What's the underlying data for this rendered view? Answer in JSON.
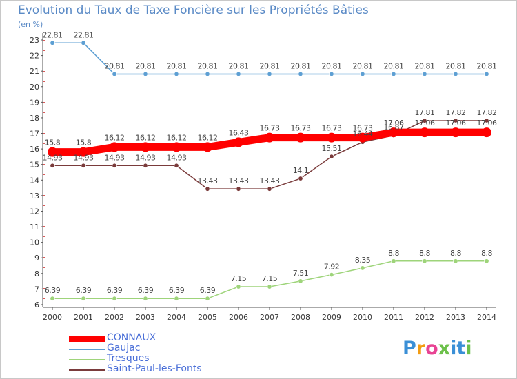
{
  "header": {
    "title": "Evolution du Taux de Taxe Foncière sur les Propriétés Bâties",
    "unit": "(en %)"
  },
  "logo": {
    "text": "Proxiti",
    "colors": [
      "#3a8fd6",
      "#f39c12",
      "#e84393",
      "#6cc04a",
      "#3a8fd6"
    ]
  },
  "chart_data": {
    "type": "line",
    "title": "Evolution du Taux de Taxe Foncière sur les Propriétés Bâties",
    "ylabel": "(en %)",
    "xlabel": "",
    "x": [
      "2000",
      "2001",
      "2002",
      "2003",
      "2004",
      "2005",
      "2006",
      "2007",
      "2008",
      "2009",
      "2010",
      "2011",
      "2012",
      "2013",
      "2014"
    ],
    "ylim": [
      6,
      23
    ],
    "yticks": [
      "6",
      "7",
      "8",
      "9",
      "10",
      "11",
      "12",
      "13",
      "14",
      "15",
      "16",
      "17",
      "18",
      "19",
      "20",
      "21",
      "22",
      "23"
    ],
    "grid": false,
    "legend_position": "bottom-left",
    "series": [
      {
        "name": "CONNAUX",
        "color": "#ff0000",
        "values": [
          15.8,
          15.8,
          16.12,
          16.12,
          16.12,
          16.12,
          16.43,
          16.73,
          16.73,
          16.73,
          16.73,
          17.06,
          17.06,
          17.06,
          17.06
        ],
        "labels": [
          "15.8",
          "15.8",
          "16.12",
          "16.12",
          "16.12",
          "16.12",
          "16.43",
          "16.73",
          "16.73",
          "16.73",
          "16.73",
          "17.06",
          "17.06",
          "17.06",
          "17.06"
        ]
      },
      {
        "name": "Gaujac",
        "color": "#5d9fd3",
        "values": [
          22.81,
          22.81,
          20.81,
          20.81,
          20.81,
          20.81,
          20.81,
          20.81,
          20.81,
          20.81,
          20.81,
          20.81,
          20.81,
          20.81,
          20.81
        ],
        "labels": [
          "22.81",
          "22.81",
          "20.81",
          "20.81",
          "20.81",
          "20.81",
          "20.81",
          "20.81",
          "20.81",
          "20.81",
          "20.81",
          "20.81",
          "20.81",
          "20.81",
          "20.81"
        ]
      },
      {
        "name": "Tresques",
        "color": "#9ed47a",
        "values": [
          6.39,
          6.39,
          6.39,
          6.39,
          6.39,
          6.39,
          7.15,
          7.15,
          7.51,
          7.92,
          8.35,
          8.8,
          8.8,
          8.8,
          8.8
        ],
        "labels": [
          "6.39",
          "6.39",
          "6.39",
          "6.39",
          "6.39",
          "6.39",
          "7.15",
          "7.15",
          "7.51",
          "7.92",
          "8.35",
          "8.8",
          "8.8",
          "8.8",
          "8.8"
        ]
      },
      {
        "name": "Saint-Paul-les-Fonts",
        "color": "#7a3b3b",
        "values": [
          14.93,
          14.93,
          14.93,
          14.93,
          14.93,
          13.43,
          13.43,
          13.43,
          14.1,
          15.51,
          16.44,
          16.87,
          17.81,
          17.82,
          17.82
        ],
        "labels": [
          "14.93",
          "14.93",
          "14.93",
          "14.93",
          "14.93",
          "13.43",
          "13.43",
          "13.43",
          "14.1",
          "15.51",
          "16.44",
          "16.87",
          "17.81",
          "17.82",
          "17.82"
        ]
      }
    ]
  }
}
